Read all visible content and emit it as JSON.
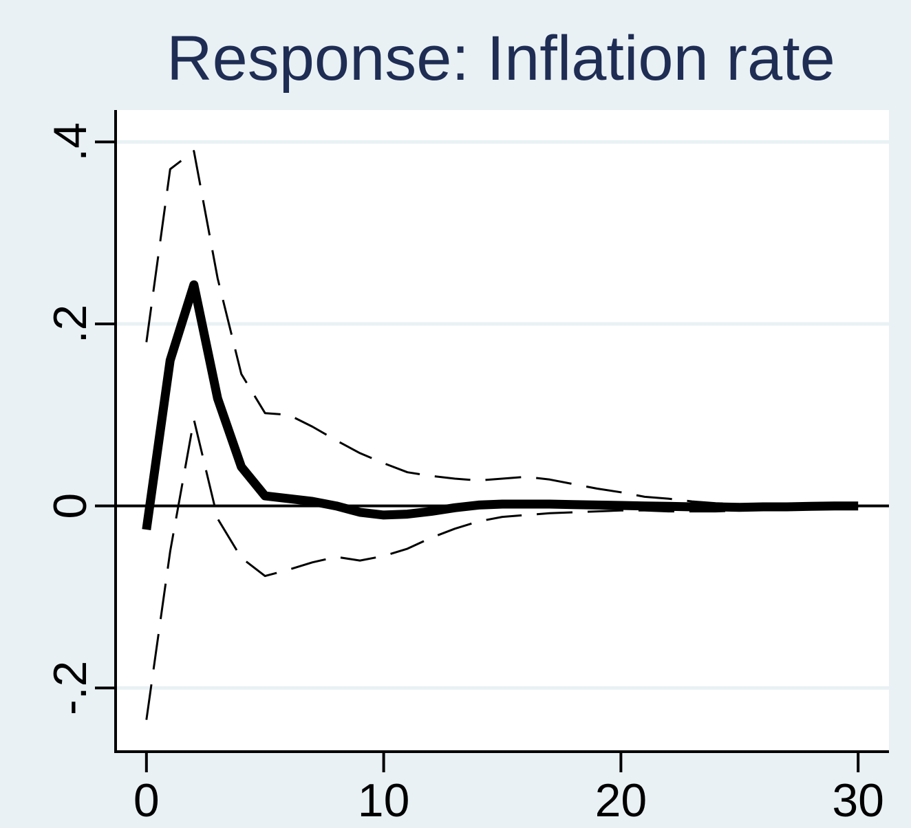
{
  "chart_data": {
    "type": "line",
    "title": "Response: Inflation rate",
    "xlabel": "",
    "ylabel": "",
    "xlim": [
      -1.3,
      31.3
    ],
    "ylim": [
      -0.27,
      0.435
    ],
    "xticks": [
      0,
      10,
      20,
      30
    ],
    "xtick_labels": [
      "0",
      "10",
      "20",
      "30"
    ],
    "yticks": [
      -0.2,
      0,
      0.2,
      0.4
    ],
    "ytick_labels": [
      "-.2",
      "0",
      ".2",
      ".4"
    ],
    "grid": true,
    "legend": "none",
    "colors": {
      "background": "#e9f1f4",
      "plot_area": "#ffffff",
      "grid": "#e9f1f4",
      "title": "#1f2d54",
      "line": "#000000"
    },
    "x": [
      0,
      1,
      2,
      3,
      4,
      5,
      6,
      7,
      8,
      9,
      10,
      11,
      12,
      13,
      14,
      15,
      16,
      17,
      18,
      19,
      20,
      21,
      22,
      23,
      24,
      25,
      26,
      27,
      28,
      29,
      30
    ],
    "series": [
      {
        "style": "solid",
        "values": [
          -0.026,
          0.16,
          0.243,
          0.118,
          0.043,
          0.011,
          0.008,
          0.005,
          0.0,
          -0.007,
          -0.01,
          -0.009,
          -0.006,
          -0.002,
          0.001,
          0.002,
          0.002,
          0.002,
          0.0015,
          0.001,
          0.0005,
          0.0,
          -0.0005,
          -0.001,
          -0.001,
          -0.0015,
          -0.001,
          -0.001,
          -0.0005,
          0.0,
          0.0
        ]
      },
      {
        "style": "dashed",
        "values": [
          0.18,
          0.37,
          0.39,
          0.25,
          0.145,
          0.102,
          0.1,
          0.087,
          0.072,
          0.058,
          0.047,
          0.037,
          0.033,
          0.03,
          0.028,
          0.03,
          0.032,
          0.029,
          0.024,
          0.019,
          0.015,
          0.01,
          0.008,
          0.005,
          0.003,
          0.002,
          0.001,
          0.001,
          0.001,
          0.0,
          0.0
        ]
      },
      {
        "style": "dashed",
        "values": [
          -0.235,
          -0.05,
          0.095,
          -0.014,
          -0.057,
          -0.077,
          -0.07,
          -0.062,
          -0.056,
          -0.06,
          -0.055,
          -0.047,
          -0.035,
          -0.025,
          -0.017,
          -0.012,
          -0.01,
          -0.008,
          -0.007,
          -0.006,
          -0.005,
          -0.005,
          -0.006,
          -0.006,
          -0.006,
          -0.005,
          -0.004,
          -0.004,
          -0.003,
          -0.002,
          -0.001
        ]
      }
    ]
  }
}
